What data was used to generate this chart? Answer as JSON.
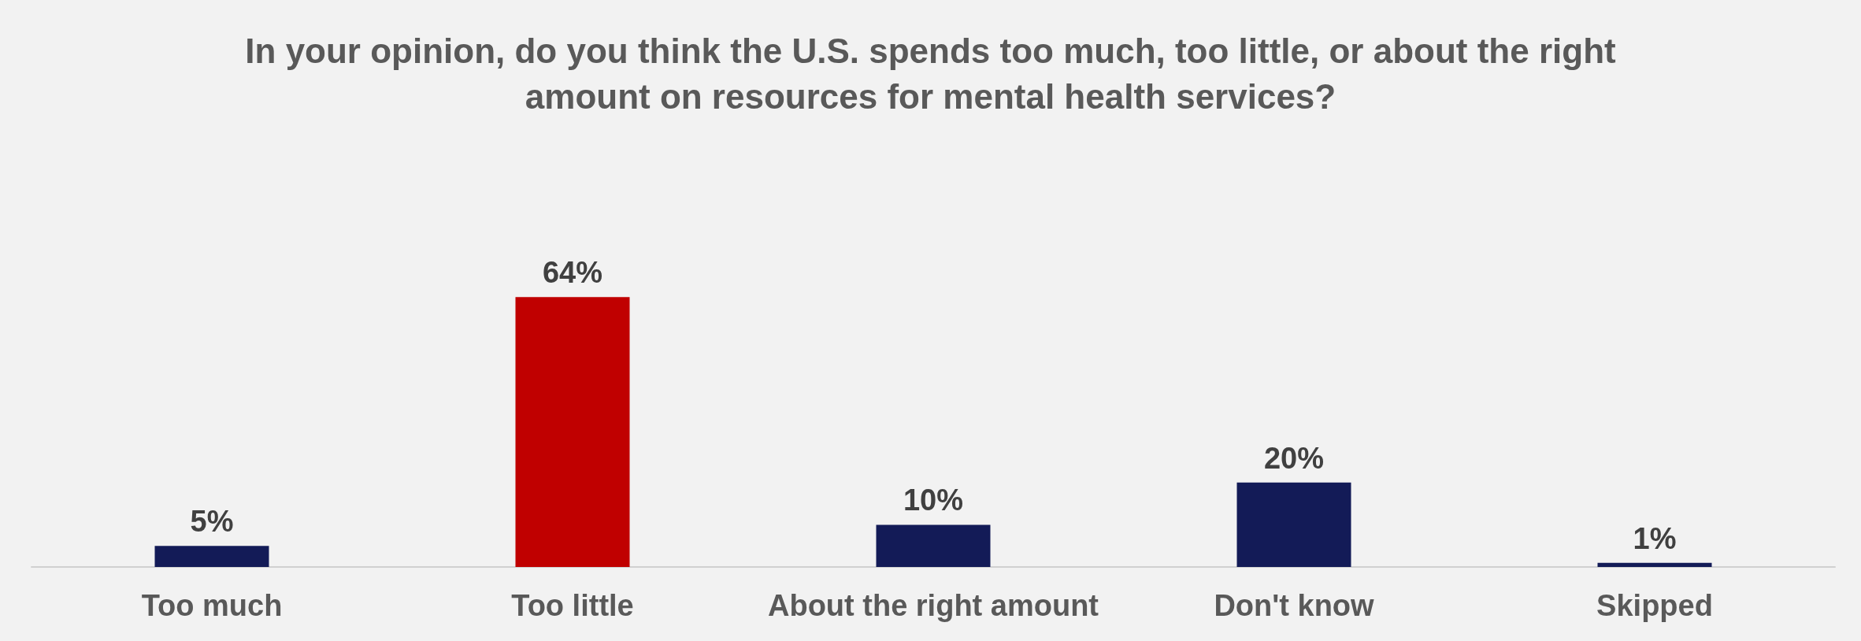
{
  "chart_data": {
    "type": "bar",
    "title": "In your opinion, do you think the U.S. spends too much, too little, or about the right\namount on resources for mental health services?",
    "categories": [
      "Too much",
      "Too little",
      "About the right amount",
      "Don't know",
      "Skipped"
    ],
    "values": [
      5,
      64,
      10,
      20,
      1
    ],
    "colors": [
      "#131b57",
      "#c00000",
      "#131b57",
      "#131b57",
      "#131b57"
    ],
    "value_labels": [
      "5%",
      "64%",
      "10%",
      "20%",
      "1%"
    ]
  }
}
